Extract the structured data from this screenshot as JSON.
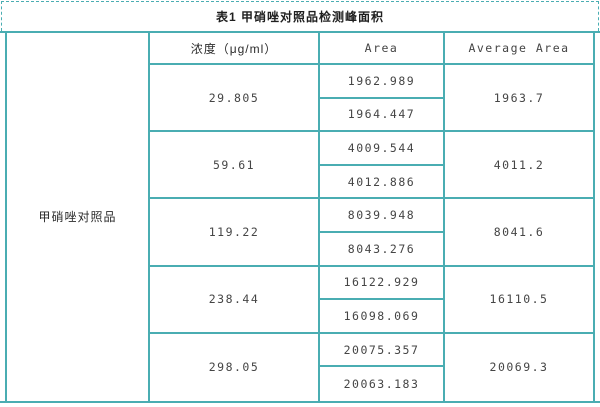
{
  "title": "表1 甲硝唑对照品检测峰面积",
  "colors": {
    "border": "#4aadb2",
    "title_text": "#1f1f1f",
    "cell_text": "#454545"
  },
  "table": {
    "row_label": "甲硝唑对照品",
    "headers": {
      "concentration": "浓度（μg/ml）",
      "area": "Area",
      "average_area": "Average Area"
    },
    "groups": [
      {
        "concentration": "29.805",
        "areas": [
          "1962.989",
          "1964.447"
        ],
        "average": "1963.7"
      },
      {
        "concentration": "59.61",
        "areas": [
          "4009.544",
          "4012.886"
        ],
        "average": "4011.2"
      },
      {
        "concentration": "119.22",
        "areas": [
          "8039.948",
          "8043.276"
        ],
        "average": "8041.6"
      },
      {
        "concentration": "238.44",
        "areas": [
          "16122.929",
          "16098.069"
        ],
        "average": "16110.5"
      },
      {
        "concentration": "298.05",
        "areas": [
          "20075.357",
          "20063.183"
        ],
        "average": "20069.3"
      }
    ]
  }
}
